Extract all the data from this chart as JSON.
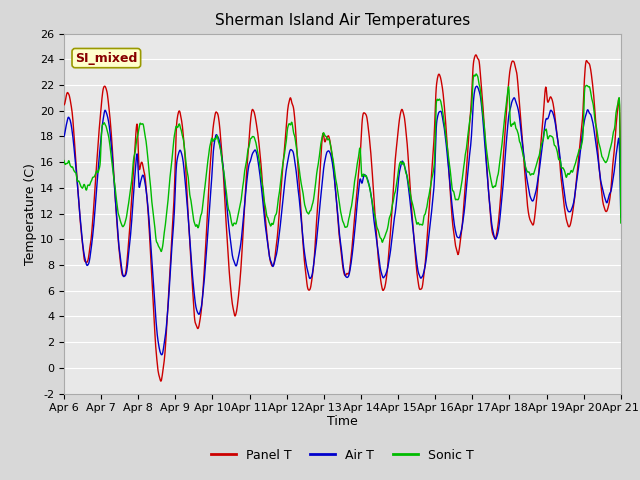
{
  "title": "Sherman Island Air Temperatures",
  "xlabel": "Time",
  "ylabel": "Temperature (C)",
  "ylim": [
    -2,
    26
  ],
  "yticks": [
    -2,
    0,
    2,
    4,
    6,
    8,
    10,
    12,
    14,
    16,
    18,
    20,
    22,
    24,
    26
  ],
  "x_tick_labels": [
    "Apr 6",
    "Apr 7",
    "Apr 8",
    "Apr 9",
    "Apr 10",
    "Apr 11",
    "Apr 12",
    "Apr 13",
    "Apr 14",
    "Apr 15",
    "Apr 16",
    "Apr 17",
    "Apr 18",
    "Apr 19",
    "Apr 20",
    "Apr 21"
  ],
  "panel_color": "#cc0000",
  "air_color": "#0000cc",
  "sonic_color": "#00bb00",
  "fig_bg": "#d8d8d8",
  "plot_bg": "#e8e8e8",
  "legend_label_panel": "Panel T",
  "legend_label_air": "Air T",
  "legend_label_sonic": "Sonic T",
  "annotation_text": "SI_mixed",
  "annotation_bg": "#ffffcc",
  "annotation_border": "#999900",
  "annotation_text_color": "#880000",
  "title_fontsize": 11,
  "axis_fontsize": 9,
  "tick_fontsize": 8
}
